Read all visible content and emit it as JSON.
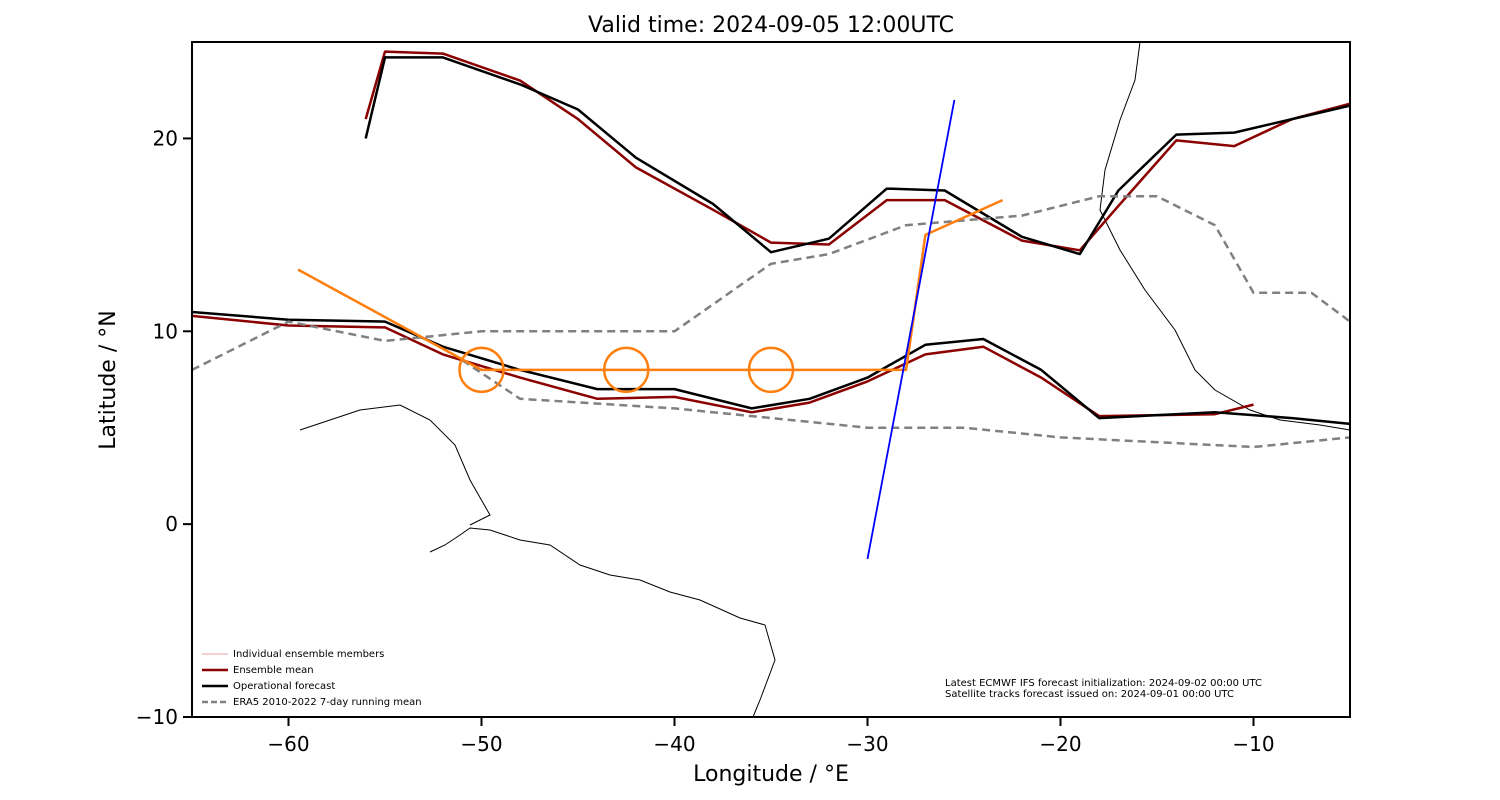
{
  "chart_data": {
    "type": "line",
    "title": "Valid time: 2024-09-05 12:00UTC",
    "xlabel": "Longitude / °E",
    "ylabel": "Latitude / °N",
    "xlim": [
      -65,
      -5
    ],
    "ylim": [
      -10,
      25
    ],
    "xticks": [
      {
        "value": -60,
        "label": "−60"
      },
      {
        "value": -50,
        "label": "−50"
      },
      {
        "value": -40,
        "label": "−40"
      },
      {
        "value": -30,
        "label": "−30"
      },
      {
        "value": -20,
        "label": "−20"
      },
      {
        "value": -10,
        "label": "−10"
      }
    ],
    "yticks": [
      {
        "value": -10,
        "label": "−10"
      },
      0,
      10,
      20
    ],
    "series": [
      {
        "name": "Individual ensemble members",
        "color": "#e8a0a0",
        "x": [],
        "y": []
      },
      {
        "name": "Ensemble mean",
        "color": "#8b0000",
        "x": [
          -65,
          -60,
          -55,
          -52,
          -48,
          -44,
          -40,
          -36,
          -33,
          -30,
          -27,
          -24,
          -21,
          -18,
          -12,
          -10,
          null,
          -56,
          -55,
          -52,
          -48,
          -45,
          -42,
          -38,
          -35,
          -32,
          -29,
          -26,
          -22,
          -19,
          -17,
          -14,
          -11,
          -8,
          -5
        ],
        "y": [
          10.8,
          10.3,
          10.2,
          8.8,
          7.6,
          6.5,
          6.6,
          5.8,
          6.3,
          7.4,
          8.8,
          9.2,
          7.6,
          5.6,
          5.7,
          6.2,
          null,
          21,
          24.5,
          24.4,
          23,
          21,
          18.5,
          16.3,
          14.6,
          14.5,
          16.8,
          16.8,
          14.7,
          14.2,
          16.5,
          19.9,
          19.6,
          21,
          21.8
        ]
      },
      {
        "name": "Operational forecast",
        "color": "#000000",
        "x": [
          -65,
          -60,
          -55,
          -52,
          -48,
          -44,
          -40,
          -36,
          -33,
          -30,
          -27,
          -24,
          -21,
          -18,
          -12,
          -8,
          -5,
          null,
          -56,
          -55,
          -52,
          -48,
          -45,
          -42,
          -38,
          -35,
          -32,
          -29,
          -26,
          -22,
          -19,
          -17,
          -14,
          -11,
          -8,
          -5
        ],
        "y": [
          11,
          10.6,
          10.5,
          9.2,
          8,
          7,
          7,
          6,
          6.5,
          7.6,
          9.3,
          9.6,
          8,
          5.5,
          5.8,
          5.5,
          5.2,
          null,
          20,
          24.2,
          24.2,
          22.8,
          21.5,
          19,
          16.6,
          14.1,
          14.8,
          17.4,
          17.3,
          14.9,
          14,
          17.3,
          20.2,
          20.3,
          21,
          21.7
        ]
      },
      {
        "name": "ERA5 2010-2022 7-day running mean",
        "color": "#808080",
        "dashed": true,
        "x": [
          -65,
          -60,
          -55,
          -50,
          -45,
          -40,
          -35,
          -32,
          -28,
          -22,
          -18,
          -15,
          -12,
          -10,
          -7,
          -5,
          null,
          -51,
          -48,
          -40,
          -30,
          -25,
          -20,
          -10,
          -5
        ],
        "y": [
          8,
          10.5,
          9.5,
          10,
          10,
          10,
          13.5,
          14,
          15.5,
          16,
          17,
          17,
          15.5,
          12,
          12,
          10.5,
          null,
          8.5,
          6.5,
          6,
          5,
          5,
          4.5,
          4,
          4.5
        ]
      }
    ],
    "tracks": [
      {
        "color": "#ff7f0e",
        "x": [
          -59.5,
          -50,
          -42.5,
          -35,
          -28,
          -27,
          -23
        ],
        "y": [
          13.2,
          8,
          8,
          8,
          8,
          15,
          16.8
        ]
      },
      {
        "color": "#0000ff",
        "x": [
          -30,
          -25.5
        ],
        "y": [
          -1.8,
          22
        ]
      }
    ],
    "circles": {
      "color": "#ff7f0e",
      "x": [
        -50,
        -42.5,
        -35
      ],
      "y": [
        8,
        8,
        8
      ]
    },
    "annotations": [
      "Latest ECMWF IFS forecast initialization: 2024-09-02 00:00 UTC",
      "Satellite tracks forecast issued on: 2024-09-01 00:00 UTC"
    ]
  }
}
